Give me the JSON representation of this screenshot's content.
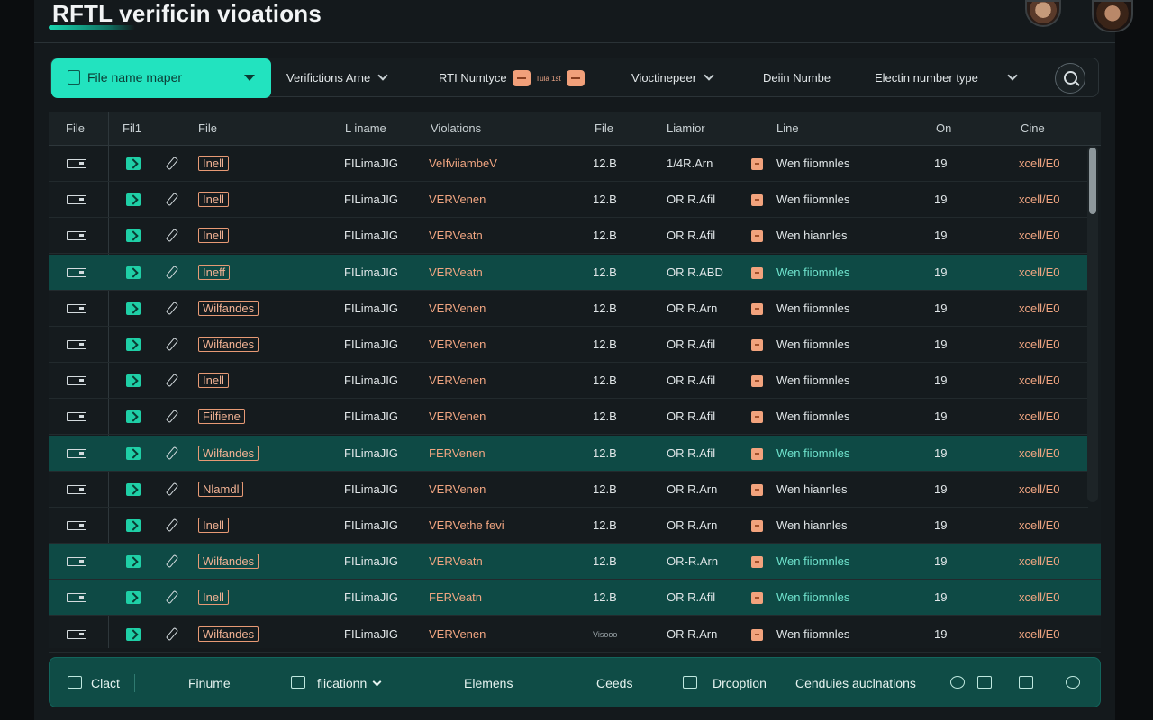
{
  "app": {
    "title": "RFTL verificin vioations"
  },
  "toolbar": {
    "file_select": "File name maper",
    "filters": [
      "Verifictions Arne",
      "RTI Numtyce",
      "Vioctinepeer",
      "Deiin Numbe",
      "Electin number type"
    ],
    "tiny_label": "Tula 1st"
  },
  "table": {
    "headers": [
      "File",
      "Fil1",
      "File",
      "L iname",
      "Violations",
      "File",
      "Liamior",
      "Line",
      "On",
      "Cine"
    ],
    "rows": [
      {
        "tag": "Inell",
        "fname": "FILimaJIG",
        "viol": "VeIfviiambeV",
        "size": "12.B",
        "lib": "1/4R.Arn",
        "line": "Wen fiiomnles",
        "on": "19",
        "cine": "xcell/E0",
        "hl": false
      },
      {
        "tag": "Inell",
        "fname": "FILimaJIG",
        "viol": "VERVenen",
        "size": "12.B",
        "lib": "OR R.Afil",
        "line": "Wen fiiomnles",
        "on": "19",
        "cine": "xcell/E0",
        "hl": false
      },
      {
        "tag": "Inell",
        "fname": "FILimaJIG",
        "viol": "VERVeatn",
        "size": "12.B",
        "lib": "OR R.Afil",
        "line": "Wen hiannles",
        "on": "19",
        "cine": "xcell/E0",
        "hl": false
      },
      {
        "tag": "Ineff",
        "fname": "FILimaJIG",
        "viol": "VERVeatn",
        "size": "12.B",
        "lib": "OR R.ABD",
        "line": "Wen fiiomnles",
        "on": "19",
        "cine": "xcell/E0",
        "hl": true
      },
      {
        "tag": "Wilfandes",
        "fname": "FILimaJIG",
        "viol": "VERVenen",
        "size": "12.B",
        "lib": "OR R.Arn",
        "line": "Wen fiiomnles",
        "on": "19",
        "cine": "xcell/E0",
        "hl": false
      },
      {
        "tag": "Wilfandes",
        "fname": "FILimaJIG",
        "viol": "VERVenen",
        "size": "12.B",
        "lib": "OR R.Afil",
        "line": "Wen fiiomnles",
        "on": "19",
        "cine": "xcell/E0",
        "hl": false
      },
      {
        "tag": "Inell",
        "fname": "FILimaJIG",
        "viol": "VERVenen",
        "size": "12.B",
        "lib": "OR R.Afil",
        "line": "Wen fiiomnles",
        "on": "19",
        "cine": "xcell/E0",
        "hl": false
      },
      {
        "tag": "Filfiene",
        "fname": "FILimaJIG",
        "viol": "VERVenen",
        "size": "12.B",
        "lib": "OR R.Afil",
        "line": "Wen fiiomnles",
        "on": "19",
        "cine": "xcell/E0",
        "hl": false
      },
      {
        "tag": "Wilfandes",
        "fname": "FILimaJIG",
        "viol": "FERVenen",
        "size": "12.B",
        "lib": "OR R.Afil",
        "line": "Wen fiiomnles",
        "on": "19",
        "cine": "xcell/E0",
        "hl": true
      },
      {
        "tag": "Nlamdl",
        "fname": "FILimaJIG",
        "viol": "VERVenen",
        "size": "12.B",
        "lib": "OR R.Arn",
        "line": "Wen hiannles",
        "on": "19",
        "cine": "xcell/E0",
        "hl": false
      },
      {
        "tag": "Inell",
        "fname": "FILimaJIG",
        "viol": "VERVethe fevi",
        "size": "12.B",
        "lib": "OR R.Arn",
        "line": "Wen hiannles",
        "on": "19",
        "cine": "xcell/E0",
        "hl": false
      },
      {
        "tag": "Wilfandes",
        "fname": "FILimaJIG",
        "viol": "VERVeatn",
        "size": "12.B",
        "lib": "OR-R.Arn",
        "line": "Wen fiiomnles",
        "on": "19",
        "cine": "xcell/E0",
        "hl": true
      },
      {
        "tag": "Inell",
        "fname": "FILimaJIG",
        "viol": "FERVeatn",
        "size": "12.B",
        "lib": "OR R.Afil",
        "line": "Wen fiiomnles",
        "on": "19",
        "cine": "xcell/E0",
        "hl": true
      },
      {
        "tag": "Wilfandes",
        "fname": "FILimaJIG",
        "viol": "VERVenen",
        "size": "Visooo",
        "lib": "OR R.Arn",
        "line": "Wen fiiomnles",
        "on": "19",
        "cine": "xcell/E0",
        "hl": false
      }
    ]
  },
  "bottombar": {
    "clact": "Clact",
    "finume": "Finume",
    "fication": "fiicationn",
    "elements": "Elemens",
    "ceeds": "Ceeds",
    "drcoption": "Drcoption",
    "cendues": "Cenduies auclnations"
  }
}
